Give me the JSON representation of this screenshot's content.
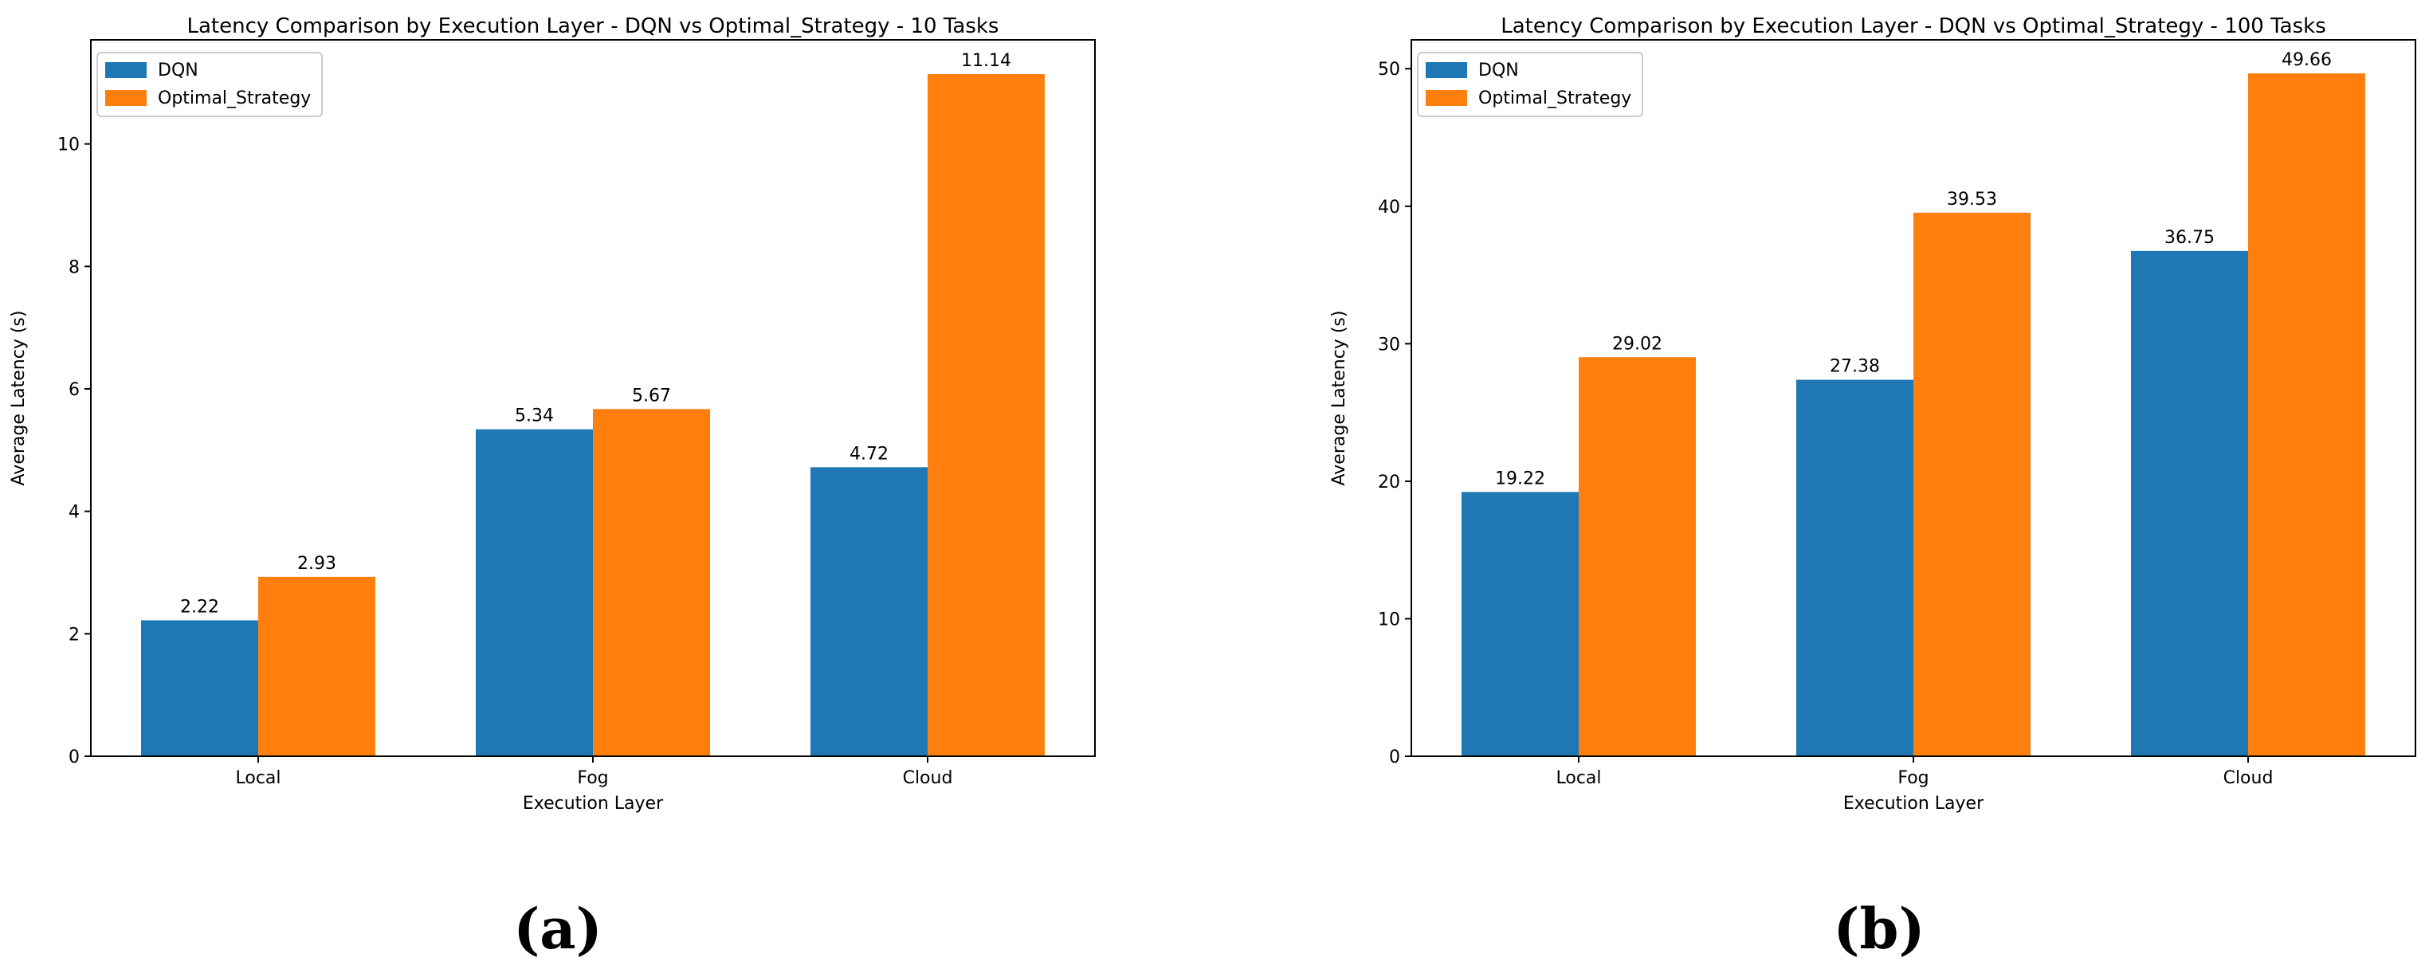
{
  "colors": {
    "dqn": "#1f77b4",
    "optimal": "#ff7f0e"
  },
  "chart_data": [
    {
      "type": "bar",
      "title": "Latency Comparison by Execution Layer - DQN vs Optimal_Strategy - 10 Tasks",
      "xlabel": "Execution Layer",
      "ylabel": "Average Latency (s)",
      "categories": [
        "Local",
        "Fog",
        "Cloud"
      ],
      "series": [
        {
          "name": "DQN",
          "values": [
            2.22,
            5.34,
            4.72
          ],
          "labels": [
            "2.22",
            "5.34",
            "4.72"
          ]
        },
        {
          "name": "Optimal_Strategy",
          "values": [
            2.93,
            5.67,
            11.14
          ],
          "labels": [
            "2.93",
            "5.67",
            "11.14"
          ]
        }
      ],
      "ylim": [
        0,
        11.7
      ],
      "yticks": [
        0,
        2,
        4,
        6,
        8,
        10
      ],
      "ytick_labels": [
        "0",
        "2",
        "4",
        "6",
        "8",
        "10"
      ],
      "legend": "top-left",
      "panel_label": "(a)"
    },
    {
      "type": "bar",
      "title": "Latency Comparison by Execution Layer - DQN vs Optimal_Strategy - 100 Tasks",
      "xlabel": "Execution Layer",
      "ylabel": "Average Latency (s)",
      "categories": [
        "Local",
        "Fog",
        "Cloud"
      ],
      "series": [
        {
          "name": "DQN",
          "values": [
            19.22,
            27.38,
            36.75
          ],
          "labels": [
            "19.22",
            "27.38",
            "36.75"
          ]
        },
        {
          "name": "Optimal_Strategy",
          "values": [
            29.02,
            39.53,
            49.66
          ],
          "labels": [
            "29.02",
            "39.53",
            "49.66"
          ]
        }
      ],
      "ylim": [
        0,
        52.1
      ],
      "yticks": [
        0,
        10,
        20,
        30,
        40,
        50
      ],
      "ytick_labels": [
        "0",
        "10",
        "20",
        "30",
        "40",
        "50"
      ],
      "legend": "top-left",
      "panel_label": "(b)"
    }
  ]
}
